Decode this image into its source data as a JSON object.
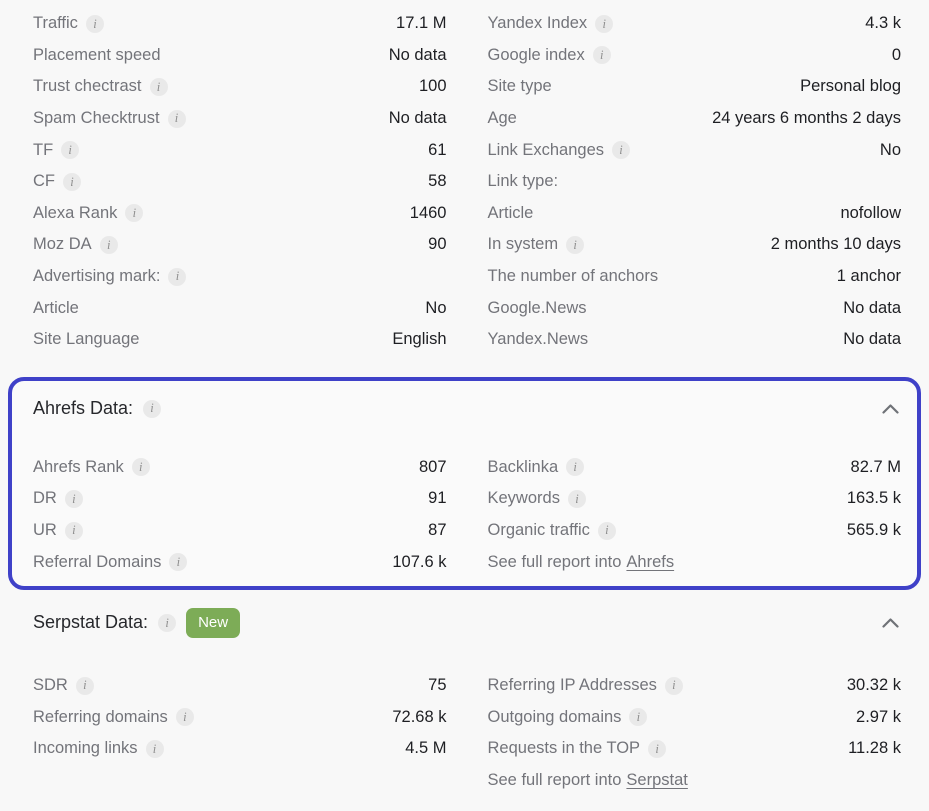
{
  "colors": {
    "page_background": "#f8f8f8",
    "accent_border_blue": "#3f41c8",
    "badge_green": "#7dac57",
    "label_gray": "#73747a",
    "value_dark": "#1e1f23"
  },
  "main_metrics": {
    "left": [
      {
        "label": "Traffic",
        "info": true,
        "value": "17.1 M"
      },
      {
        "label": "Placement speed",
        "info": false,
        "value": "No data"
      },
      {
        "label": "Trust chectrast",
        "info": true,
        "value": "100"
      },
      {
        "label": "Spam Checktrust",
        "info": true,
        "value": "No data"
      },
      {
        "label": "TF",
        "info": true,
        "value": "61"
      },
      {
        "label": "CF",
        "info": true,
        "value": "58"
      },
      {
        "label": "Alexa Rank",
        "info": true,
        "value": "1460"
      },
      {
        "label": "Moz DA",
        "info": true,
        "value": "90"
      },
      {
        "label": "Advertising mark:",
        "info": true,
        "value": ""
      },
      {
        "label": "Article",
        "info": false,
        "value": "No"
      },
      {
        "label": "Site Language",
        "info": false,
        "value": "English"
      }
    ],
    "right": [
      {
        "label": "Yandex Index",
        "info": true,
        "value": "4.3 k"
      },
      {
        "label": "Google index",
        "info": true,
        "value": "0"
      },
      {
        "label": "Site type",
        "info": false,
        "value": "Personal blog"
      },
      {
        "label": "Age",
        "info": false,
        "value": "24 years 6 months 2 days"
      },
      {
        "label": "Link Exchanges",
        "info": true,
        "value": "No"
      },
      {
        "label": "Link type:",
        "info": false,
        "value": ""
      },
      {
        "label": "Article",
        "info": false,
        "value": "nofollow"
      },
      {
        "label": "In system",
        "info": true,
        "value": "2 months 10 days"
      },
      {
        "label": "The number of anchors",
        "info": false,
        "value": "1 anchor"
      },
      {
        "label": "Google.News",
        "info": false,
        "value": "No data"
      },
      {
        "label": "Yandex.News",
        "info": false,
        "value": "No data"
      }
    ]
  },
  "ahrefs": {
    "title": "Ahrefs Data:",
    "left": [
      {
        "label": "Ahrefs Rank",
        "info": true,
        "value": "807"
      },
      {
        "label": "DR",
        "info": true,
        "value": "91"
      },
      {
        "label": "UR",
        "info": true,
        "value": "87"
      },
      {
        "label": "Referral Domains",
        "info": true,
        "value": "107.6 k"
      }
    ],
    "right": [
      {
        "label": "Backlinka",
        "info": true,
        "value": "82.7 M"
      },
      {
        "label": "Keywords",
        "info": true,
        "value": "163.5 k"
      },
      {
        "label": "Organic traffic",
        "info": true,
        "value": "565.9 k"
      },
      {
        "label": "See full report into",
        "link": "Ahrefs"
      }
    ]
  },
  "serpstat": {
    "title": "Serpstat Data:",
    "badge": "New",
    "left": [
      {
        "label": "SDR",
        "info": true,
        "value": "75"
      },
      {
        "label": "Referring domains",
        "info": true,
        "value": "72.68 k"
      },
      {
        "label": "Incoming links",
        "info": true,
        "value": "4.5 M"
      }
    ],
    "right": [
      {
        "label": "Referring IP Addresses",
        "info": true,
        "value": "30.32 k"
      },
      {
        "label": "Outgoing domains",
        "info": true,
        "value": "2.97 k"
      },
      {
        "label": "Requests in the TOP",
        "info": true,
        "value": "11.28 k"
      },
      {
        "label": "See full report into",
        "link": "Serpstat"
      }
    ]
  }
}
